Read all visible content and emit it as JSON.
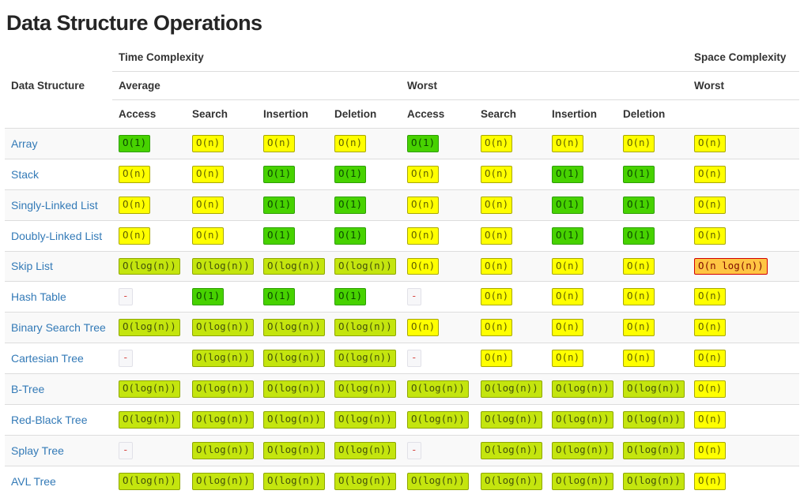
{
  "page": {
    "title": "Data Structure Operations"
  },
  "table": {
    "headers": {
      "data_structure": "Data Structure",
      "time_complexity": "Time Complexity",
      "space_complexity": "Space Complexity",
      "average": "Average",
      "worst": "Worst",
      "space_worst": "Worst",
      "ops": [
        "Access",
        "Search",
        "Insertion",
        "Deletion",
        "Access",
        "Search",
        "Insertion",
        "Deletion"
      ]
    },
    "levels": {
      "excellent": {
        "bg": "#47d200",
        "border": "#2d9e00",
        "text": "#0b4a00"
      },
      "good": {
        "bg": "#c4e50e",
        "border": "#8ea700",
        "text": "#44520a"
      },
      "fair": {
        "bg": "#ffff00",
        "border": "#a8a800",
        "text": "#5f5f00"
      },
      "bad": {
        "bg": "#ffc543",
        "border": "#d10000",
        "text": "#7d0b00"
      },
      "na": {
        "bg": "#f7f7f9",
        "border": "#e1e1e8",
        "text": "#d64541"
      }
    },
    "rows": [
      {
        "name": "Array",
        "cells": [
          {
            "text": "O(1)",
            "level": "excellent"
          },
          {
            "text": "O(n)",
            "level": "fair"
          },
          {
            "text": "O(n)",
            "level": "fair"
          },
          {
            "text": "O(n)",
            "level": "fair"
          },
          {
            "text": "O(1)",
            "level": "excellent"
          },
          {
            "text": "O(n)",
            "level": "fair"
          },
          {
            "text": "O(n)",
            "level": "fair"
          },
          {
            "text": "O(n)",
            "level": "fair"
          },
          {
            "text": "O(n)",
            "level": "fair"
          }
        ]
      },
      {
        "name": "Stack",
        "cells": [
          {
            "text": "O(n)",
            "level": "fair"
          },
          {
            "text": "O(n)",
            "level": "fair"
          },
          {
            "text": "O(1)",
            "level": "excellent"
          },
          {
            "text": "O(1)",
            "level": "excellent"
          },
          {
            "text": "O(n)",
            "level": "fair"
          },
          {
            "text": "O(n)",
            "level": "fair"
          },
          {
            "text": "O(1)",
            "level": "excellent"
          },
          {
            "text": "O(1)",
            "level": "excellent"
          },
          {
            "text": "O(n)",
            "level": "fair"
          }
        ]
      },
      {
        "name": "Singly-Linked List",
        "cells": [
          {
            "text": "O(n)",
            "level": "fair"
          },
          {
            "text": "O(n)",
            "level": "fair"
          },
          {
            "text": "O(1)",
            "level": "excellent"
          },
          {
            "text": "O(1)",
            "level": "excellent"
          },
          {
            "text": "O(n)",
            "level": "fair"
          },
          {
            "text": "O(n)",
            "level": "fair"
          },
          {
            "text": "O(1)",
            "level": "excellent"
          },
          {
            "text": "O(1)",
            "level": "excellent"
          },
          {
            "text": "O(n)",
            "level": "fair"
          }
        ]
      },
      {
        "name": "Doubly-Linked List",
        "cells": [
          {
            "text": "O(n)",
            "level": "fair"
          },
          {
            "text": "O(n)",
            "level": "fair"
          },
          {
            "text": "O(1)",
            "level": "excellent"
          },
          {
            "text": "O(1)",
            "level": "excellent"
          },
          {
            "text": "O(n)",
            "level": "fair"
          },
          {
            "text": "O(n)",
            "level": "fair"
          },
          {
            "text": "O(1)",
            "level": "excellent"
          },
          {
            "text": "O(1)",
            "level": "excellent"
          },
          {
            "text": "O(n)",
            "level": "fair"
          }
        ]
      },
      {
        "name": "Skip List",
        "cells": [
          {
            "text": "O(log(n))",
            "level": "good"
          },
          {
            "text": "O(log(n))",
            "level": "good"
          },
          {
            "text": "O(log(n))",
            "level": "good"
          },
          {
            "text": "O(log(n))",
            "level": "good"
          },
          {
            "text": "O(n)",
            "level": "fair"
          },
          {
            "text": "O(n)",
            "level": "fair"
          },
          {
            "text": "O(n)",
            "level": "fair"
          },
          {
            "text": "O(n)",
            "level": "fair"
          },
          {
            "text": "O(n log(n))",
            "level": "bad"
          }
        ]
      },
      {
        "name": "Hash Table",
        "cells": [
          {
            "text": "-",
            "level": "na"
          },
          {
            "text": "O(1)",
            "level": "excellent"
          },
          {
            "text": "O(1)",
            "level": "excellent"
          },
          {
            "text": "O(1)",
            "level": "excellent"
          },
          {
            "text": "-",
            "level": "na"
          },
          {
            "text": "O(n)",
            "level": "fair"
          },
          {
            "text": "O(n)",
            "level": "fair"
          },
          {
            "text": "O(n)",
            "level": "fair"
          },
          {
            "text": "O(n)",
            "level": "fair"
          }
        ]
      },
      {
        "name": "Binary Search Tree",
        "cells": [
          {
            "text": "O(log(n))",
            "level": "good"
          },
          {
            "text": "O(log(n))",
            "level": "good"
          },
          {
            "text": "O(log(n))",
            "level": "good"
          },
          {
            "text": "O(log(n))",
            "level": "good"
          },
          {
            "text": "O(n)",
            "level": "fair"
          },
          {
            "text": "O(n)",
            "level": "fair"
          },
          {
            "text": "O(n)",
            "level": "fair"
          },
          {
            "text": "O(n)",
            "level": "fair"
          },
          {
            "text": "O(n)",
            "level": "fair"
          }
        ]
      },
      {
        "name": "Cartesian Tree",
        "cells": [
          {
            "text": "-",
            "level": "na"
          },
          {
            "text": "O(log(n))",
            "level": "good"
          },
          {
            "text": "O(log(n))",
            "level": "good"
          },
          {
            "text": "O(log(n))",
            "level": "good"
          },
          {
            "text": "-",
            "level": "na"
          },
          {
            "text": "O(n)",
            "level": "fair"
          },
          {
            "text": "O(n)",
            "level": "fair"
          },
          {
            "text": "O(n)",
            "level": "fair"
          },
          {
            "text": "O(n)",
            "level": "fair"
          }
        ]
      },
      {
        "name": "B-Tree",
        "cells": [
          {
            "text": "O(log(n))",
            "level": "good"
          },
          {
            "text": "O(log(n))",
            "level": "good"
          },
          {
            "text": "O(log(n))",
            "level": "good"
          },
          {
            "text": "O(log(n))",
            "level": "good"
          },
          {
            "text": "O(log(n))",
            "level": "good"
          },
          {
            "text": "O(log(n))",
            "level": "good"
          },
          {
            "text": "O(log(n))",
            "level": "good"
          },
          {
            "text": "O(log(n))",
            "level": "good"
          },
          {
            "text": "O(n)",
            "level": "fair"
          }
        ]
      },
      {
        "name": "Red-Black Tree",
        "cells": [
          {
            "text": "O(log(n))",
            "level": "good"
          },
          {
            "text": "O(log(n))",
            "level": "good"
          },
          {
            "text": "O(log(n))",
            "level": "good"
          },
          {
            "text": "O(log(n))",
            "level": "good"
          },
          {
            "text": "O(log(n))",
            "level": "good"
          },
          {
            "text": "O(log(n))",
            "level": "good"
          },
          {
            "text": "O(log(n))",
            "level": "good"
          },
          {
            "text": "O(log(n))",
            "level": "good"
          },
          {
            "text": "O(n)",
            "level": "fair"
          }
        ]
      },
      {
        "name": "Splay Tree",
        "cells": [
          {
            "text": "-",
            "level": "na"
          },
          {
            "text": "O(log(n))",
            "level": "good"
          },
          {
            "text": "O(log(n))",
            "level": "good"
          },
          {
            "text": "O(log(n))",
            "level": "good"
          },
          {
            "text": "-",
            "level": "na"
          },
          {
            "text": "O(log(n))",
            "level": "good"
          },
          {
            "text": "O(log(n))",
            "level": "good"
          },
          {
            "text": "O(log(n))",
            "level": "good"
          },
          {
            "text": "O(n)",
            "level": "fair"
          }
        ]
      },
      {
        "name": "AVL Tree",
        "cells": [
          {
            "text": "O(log(n))",
            "level": "good"
          },
          {
            "text": "O(log(n))",
            "level": "good"
          },
          {
            "text": "O(log(n))",
            "level": "good"
          },
          {
            "text": "O(log(n))",
            "level": "good"
          },
          {
            "text": "O(log(n))",
            "level": "good"
          },
          {
            "text": "O(log(n))",
            "level": "good"
          },
          {
            "text": "O(log(n))",
            "level": "good"
          },
          {
            "text": "O(log(n))",
            "level": "good"
          },
          {
            "text": "O(n)",
            "level": "fair"
          }
        ]
      }
    ]
  }
}
